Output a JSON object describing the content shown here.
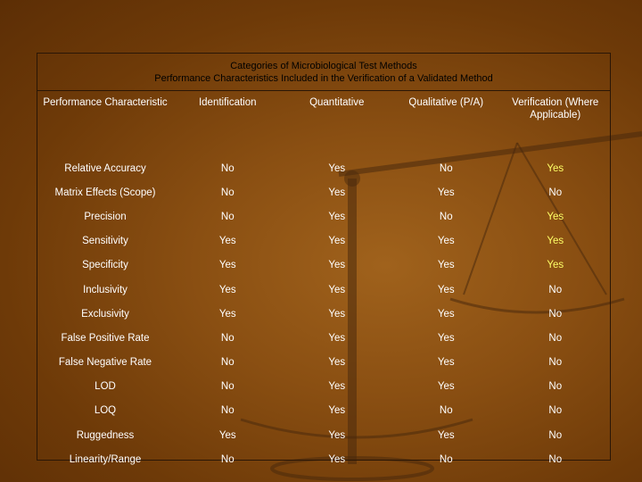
{
  "title": {
    "line1": "Categories of Microbiological Test Methods",
    "line2": "Performance Characteristics Included in the Verification of a Validated Method"
  },
  "columns": [
    "Performance Characteristic",
    "Identification",
    "Quantitative",
    "Qualitative (P/A)",
    "Verification (Where Applicable)"
  ],
  "rows": [
    [
      "Relative Accuracy",
      "No",
      "Yes",
      "No",
      "Yes"
    ],
    [
      "Matrix Effects (Scope)",
      "No",
      "Yes",
      "Yes",
      "No"
    ],
    [
      "Precision",
      "No",
      "Yes",
      "No",
      "Yes"
    ],
    [
      "Sensitivity",
      "Yes",
      "Yes",
      "Yes",
      "Yes"
    ],
    [
      "Specificity",
      "Yes",
      "Yes",
      "Yes",
      "Yes"
    ],
    [
      "Inclusivity",
      "Yes",
      "Yes",
      "Yes",
      "No"
    ],
    [
      "Exclusivity",
      "Yes",
      "Yes",
      "Yes",
      "No"
    ],
    [
      "False Positive Rate",
      "No",
      "Yes",
      "Yes",
      "No"
    ],
    [
      "False Negative Rate",
      "No",
      "Yes",
      "Yes",
      "No"
    ],
    [
      "LOD",
      "No",
      "Yes",
      "Yes",
      "No"
    ],
    [
      "LOQ",
      "No",
      "Yes",
      "No",
      "No"
    ],
    [
      "Ruggedness",
      "Yes",
      "Yes",
      "Yes",
      "No"
    ],
    [
      "Linearity/Range",
      "No",
      "Yes",
      "No",
      "No"
    ]
  ],
  "colors": {
    "background": "#8a4f12",
    "verification_yes": "#ffff66",
    "text": "#ffffff"
  }
}
